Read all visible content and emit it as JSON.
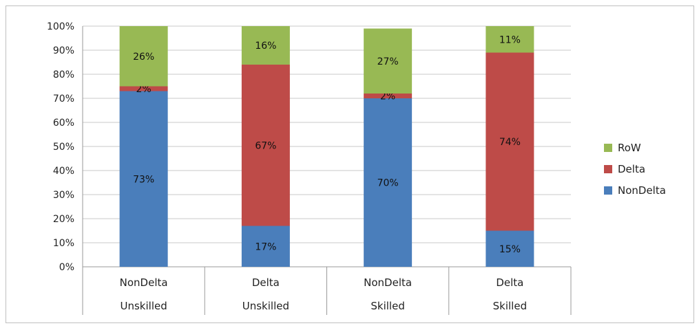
{
  "chart_data": {
    "type": "bar",
    "stacked": true,
    "percent": true,
    "categories": [
      [
        "NonDelta",
        "Unskilled"
      ],
      [
        "Delta",
        "Unskilled"
      ],
      [
        "NonDelta",
        "Skilled"
      ],
      [
        "Delta",
        "Skilled"
      ]
    ],
    "series": [
      {
        "name": "NonDelta",
        "color": "#4a7ebb",
        "values": [
          73,
          17,
          70,
          15
        ]
      },
      {
        "name": "Delta",
        "color": "#be4b48",
        "values": [
          2,
          67,
          2,
          74
        ]
      },
      {
        "name": "RoW",
        "color": "#98b954",
        "values": [
          26,
          16,
          27,
          11
        ]
      }
    ],
    "data_labels": [
      [
        "73%",
        "17%",
        "70%",
        "15%"
      ],
      [
        "2%",
        "67%",
        "2%",
        "74%"
      ],
      [
        "26%",
        "16%",
        "27%",
        "11%"
      ]
    ],
    "yticks": [
      "0%",
      "10%",
      "20%",
      "30%",
      "40%",
      "50%",
      "60%",
      "70%",
      "80%",
      "90%",
      "100%"
    ],
    "ylim": [
      0,
      100
    ],
    "grid": true,
    "legend": {
      "position": "right",
      "order": [
        "RoW",
        "Delta",
        "NonDelta"
      ]
    },
    "title": "",
    "xlabel": "",
    "ylabel": ""
  }
}
